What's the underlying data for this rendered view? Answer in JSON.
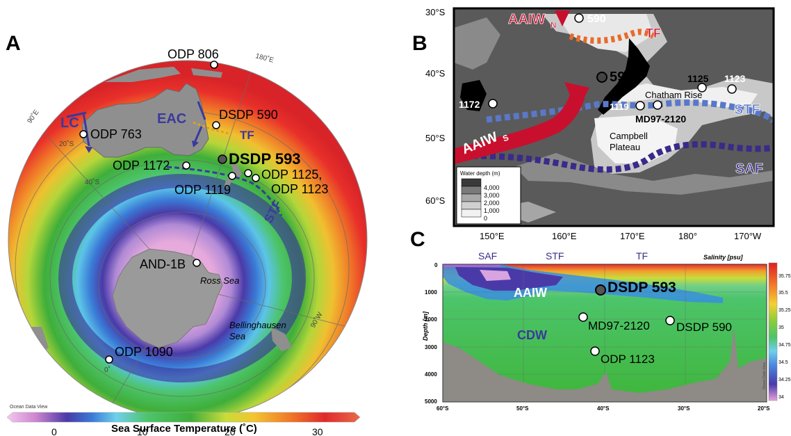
{
  "panel_a": {
    "letter": "A",
    "sites": {
      "odp806": "ODP 806",
      "dsdp590": "DSDP 590",
      "odp763": "ODP 763",
      "dsdp593": "DSDP 593",
      "odp1172": "ODP 1172",
      "odp1125": "ODP 1125,",
      "odp1123": "ODP 1123",
      "odp1119": "ODP 1119",
      "and1b": "AND-1B",
      "odp1090": "ODP 1090"
    },
    "currents": {
      "lc": "LC",
      "eac": "EAC",
      "tf": "TF",
      "stf": "STF"
    },
    "places": {
      "ross": "Ross Sea",
      "bell1": "Bellinghausen",
      "bell2": "Sea"
    },
    "grid": {
      "lon180": "180˚E",
      "lon90e": "90˚E",
      "lon90w": "90˚W",
      "lon0": "0˚",
      "lat20": "20˚S",
      "lat40": "40˚S"
    },
    "odv": "Ocean Data View",
    "colorbar": {
      "ticks": [
        "0",
        "10",
        "20",
        "30"
      ],
      "label": "Sea Surface Temperature (˚C)"
    }
  },
  "panel_b": {
    "letter": "B",
    "lat_ticks": [
      "30°S",
      "40°S",
      "50°S",
      "60°S"
    ],
    "lon_ticks": [
      "150°E",
      "160°E",
      "170°E",
      "180°",
      "170°W"
    ],
    "sites": {
      "s590": "590",
      "s593": "593",
      "s1125": "1125",
      "s1123": "1123",
      "s1172": "1172",
      "s1119": "1119",
      "md": "MD97-2120"
    },
    "fronts": {
      "tf": "TF",
      "stf": "STF",
      "saf": "SAF",
      "aaiwn": "AAIW",
      "aaiwn_sub": "N",
      "aaiws": "AAIW",
      "aaiws_sub": "S"
    },
    "places": {
      "chatham": "Chatham Rise",
      "campbell1": "Campbell",
      "campbell2": "Plateau"
    },
    "legend": {
      "title": "Water depth (m)",
      "levels": [
        "4,000",
        "3,000",
        "2,000",
        "1,000",
        "0"
      ]
    }
  },
  "panel_c": {
    "letter": "C",
    "fronts": [
      "SAF",
      "STF",
      "TF"
    ],
    "salinity_label": "Salinity [psu]",
    "ylabel": "Depth [m]",
    "y_ticks": [
      "0",
      "1000",
      "2000",
      "3000",
      "4000",
      "5000"
    ],
    "x_ticks": [
      "60°S",
      "50°S",
      "40°S",
      "30°S",
      "20°S"
    ],
    "water_masses": {
      "aaiw": "AAIW",
      "cdw": "CDW"
    },
    "sites": {
      "dsdp593": "DSDP 593",
      "md": "MD97-2120",
      "dsdp590": "DSDP 590",
      "odp1123": "ODP 1123"
    },
    "colorbar_ticks": [
      "35.75",
      "35.5",
      "35.25",
      "35",
      "34.75",
      "34.5",
      "34.25",
      "34"
    ],
    "odv": "Ocean Data View"
  },
  "colors": {
    "current_blue": "#3a3a9c",
    "tf_orange": "#e86b2a",
    "stf_blue": "#5a78c8",
    "saf_purple": "#3a2a8a",
    "aaiw_red": "#c8102e"
  }
}
